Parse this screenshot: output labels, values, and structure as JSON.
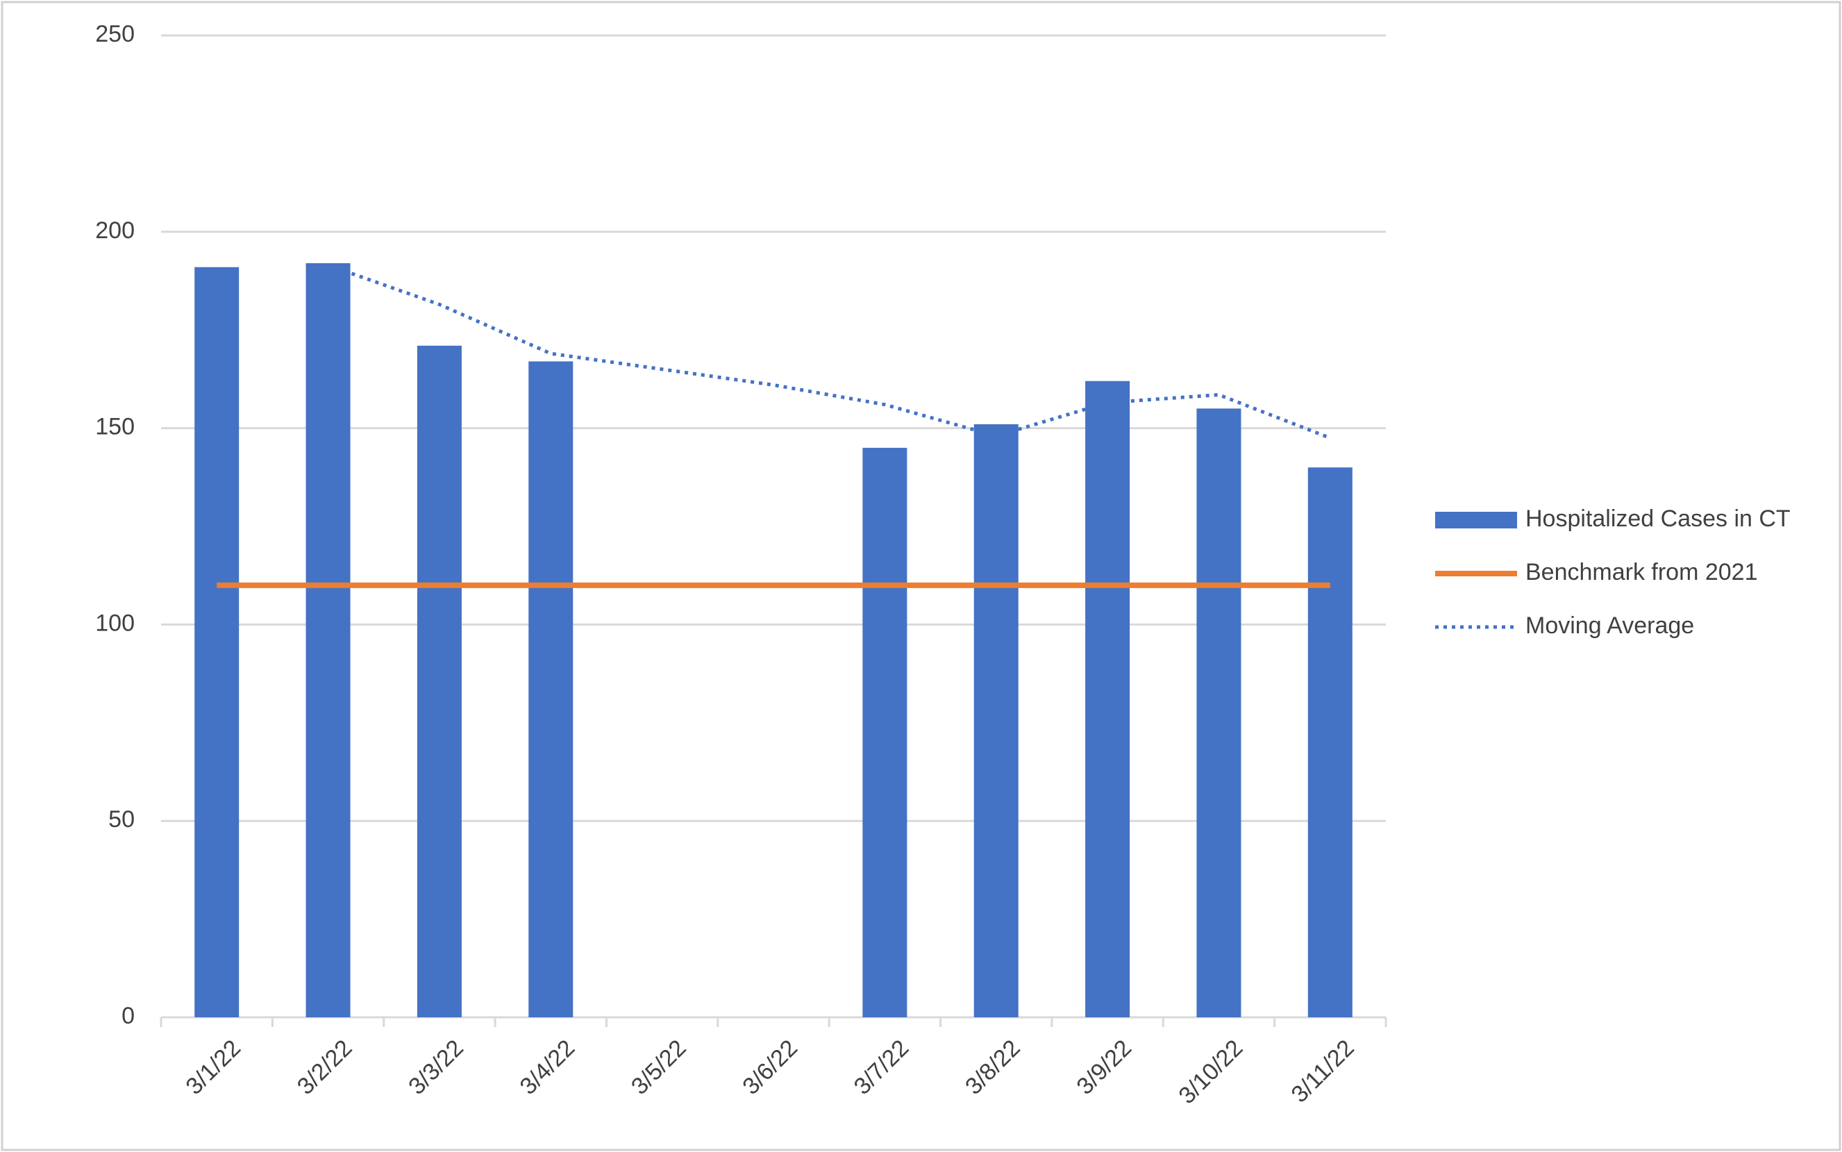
{
  "chart_data": {
    "type": "bar",
    "categories": [
      "3/1/22",
      "3/2/22",
      "3/3/22",
      "3/4/22",
      "3/5/22",
      "3/6/22",
      "3/7/22",
      "3/8/22",
      "3/9/22",
      "3/10/22",
      "3/11/22"
    ],
    "series": [
      {
        "name": "Hospitalized Cases in CT",
        "type": "bar",
        "color": "#4472c4",
        "values": [
          191,
          192,
          171,
          167,
          null,
          null,
          145,
          151,
          162,
          155,
          140
        ]
      },
      {
        "name": "Benchmark from 2021",
        "type": "line",
        "color": "#ed7d31",
        "values": [
          110,
          110,
          110,
          110,
          110,
          110,
          110,
          110,
          110,
          110,
          110
        ]
      },
      {
        "name": "Moving Average",
        "type": "dotted-line",
        "color": "#4472c4",
        "values": [
          null,
          191.5,
          181.5,
          169,
          165,
          161,
          156,
          148,
          156.5,
          158.5,
          147.5
        ]
      }
    ],
    "ylim": [
      0,
      250
    ],
    "yticks": [
      0,
      50,
      100,
      150,
      200,
      250
    ],
    "grid": true,
    "legend": "right"
  }
}
